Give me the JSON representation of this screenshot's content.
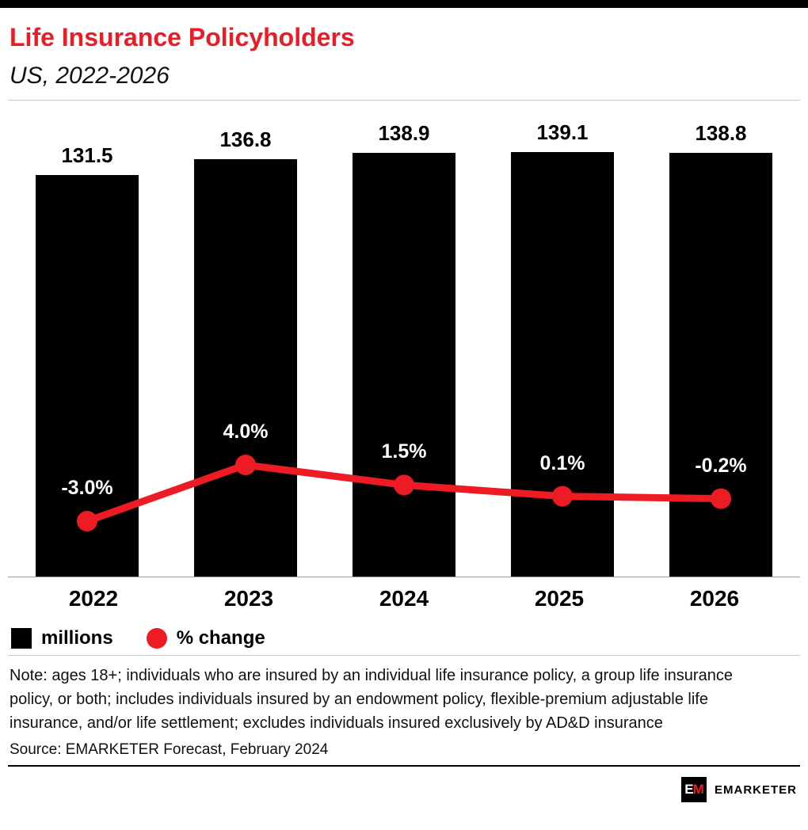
{
  "colors": {
    "accent_red": "#ed1c24",
    "bar_black": "#000000"
  },
  "header": {
    "title": "Life Insurance Policyholders",
    "subtitle": "US, 2022-2026"
  },
  "chart_data": {
    "type": "bar",
    "title": "Life Insurance Policyholders",
    "subtitle": "US, 2022-2026",
    "categories": [
      "2022",
      "2023",
      "2024",
      "2025",
      "2026"
    ],
    "series": [
      {
        "name": "millions",
        "type": "bar",
        "values": [
          131.5,
          136.8,
          138.9,
          139.1,
          138.8
        ],
        "labels": [
          "131.5",
          "136.8",
          "138.9",
          "139.1",
          "138.8"
        ],
        "color": "#000000"
      },
      {
        "name": "% change",
        "type": "line",
        "values": [
          -3.0,
          4.0,
          1.5,
          0.1,
          -0.2
        ],
        "labels": [
          "-3.0%",
          "4.0%",
          "1.5%",
          "0.1%",
          "-0.2%"
        ],
        "color": "#ed1c24"
      }
    ],
    "bar_axis": {
      "min": 0,
      "max": 150
    },
    "line_axis": {
      "min": -10,
      "max": 47
    },
    "grid": false,
    "legend_position": "bottom-left",
    "legend": [
      {
        "label": "millions",
        "swatch": "square",
        "color": "#000000"
      },
      {
        "label": "% change",
        "swatch": "circle",
        "color": "#ed1c24"
      }
    ]
  },
  "note": "Note: ages 18+; individuals who are insured by an individual life insurance policy, a group life insurance policy, or both; includes individuals insured by an endowment policy, flexible-premium adjustable life insurance, and/or life settlement; excludes individuals insured exclusively by AD&D insurance",
  "source": "Source: EMARKETER Forecast, February 2024",
  "footer": {
    "logo_text": "EM",
    "brand": "EMARKETER"
  }
}
